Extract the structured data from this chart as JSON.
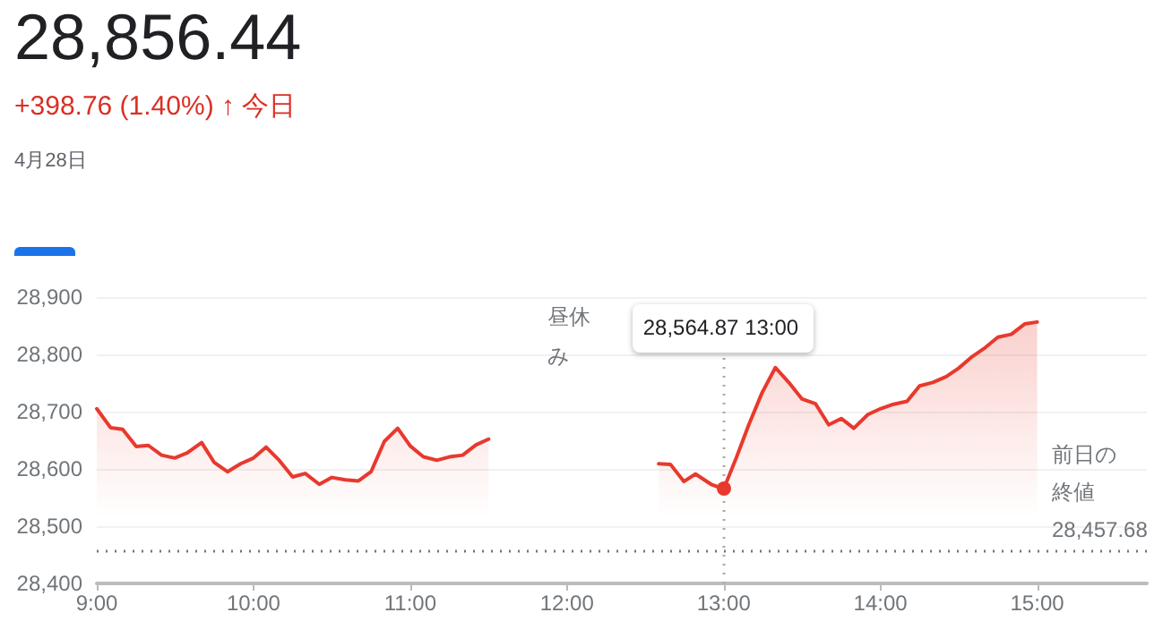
{
  "chart_data": {
    "type": "area",
    "title": "28,856.44",
    "subtitle": "+398.76 (1.40%) ↑ 今日",
    "annotations": [
      "4月28日",
      "昼休み",
      "28,564.87 13:00"
    ],
    "x": [
      9,
      9.088,
      9.165,
      9.252,
      9.329,
      9.413,
      9.497,
      9.577,
      9.669,
      9.75,
      9.834,
      9.918,
      10,
      10.08,
      10.164,
      10.25,
      10.33,
      10.42,
      10.5,
      10.587,
      10.67,
      10.75,
      10.835,
      10.92,
      11,
      11.084,
      11.17,
      11.25,
      11.335,
      11.42,
      11.5,
      12,
      12.585,
      12.66,
      12.746,
      12.82,
      12.92,
      13,
      13.08,
      13.16,
      13.245,
      13.33,
      13.415,
      13.5,
      13.585,
      13.67,
      13.75,
      13.83,
      13.92,
      14,
      14.085,
      14.17,
      14.25,
      14.335,
      14.42,
      14.5,
      14.585,
      14.67,
      14.75,
      14.835,
      14.92,
      15
    ],
    "series": [
      {
        "color": "#e8392d",
        "values": [
          28705,
          28672,
          28669,
          28639,
          28641,
          28624,
          28619,
          28628,
          28646,
          28611,
          28595,
          28609,
          28619,
          28638,
          28615,
          28586,
          28592,
          28573,
          28585,
          28581,
          28579,
          28595,
          28648,
          28671,
          28640,
          28621,
          28615,
          28621,
          28624,
          28642,
          28652,
          null,
          28609,
          28608,
          28578,
          28591,
          28573,
          28564.87,
          28619,
          28677,
          28733,
          28777,
          28751,
          28722,
          28714,
          28677,
          28688,
          28671,
          28695,
          28705,
          28713,
          28718,
          28745,
          28751,
          28761,
          28776,
          28796,
          28812,
          28830,
          28835,
          28853,
          28856.44
        ]
      }
    ],
    "xlim": [
      9,
      15.7
    ],
    "xticks": [
      {
        "value": 9,
        "label": "9:00"
      },
      {
        "value": 10,
        "label": "10:00"
      },
      {
        "value": 11,
        "label": "11:00"
      },
      {
        "value": 12,
        "label": "12:00"
      },
      {
        "value": 13,
        "label": "13:00"
      },
      {
        "value": 14,
        "label": "14:00"
      },
      {
        "value": 15,
        "label": "15:00"
      }
    ],
    "ylim": [
      28400,
      28900
    ],
    "yticks": [
      {
        "value": 28400,
        "label": "28,400"
      },
      {
        "value": 28500,
        "label": "28,500"
      },
      {
        "value": 28600,
        "label": "28,600"
      },
      {
        "value": 28700,
        "label": "28,700"
      },
      {
        "value": 28800,
        "label": "28,800"
      },
      {
        "value": 28900,
        "label": "28,900"
      }
    ],
    "ref_lines": [
      {
        "axis": "y",
        "value": 28457.68,
        "label": "前日の終値 28,457.68",
        "color": "#777777",
        "line_style": "dotted"
      },
      {
        "axis": "x",
        "value": 13,
        "color": "#aaaaaa",
        "line_style": "dotted"
      }
    ],
    "grid": "y",
    "marker": "none",
    "line_style": "solid"
  }
}
